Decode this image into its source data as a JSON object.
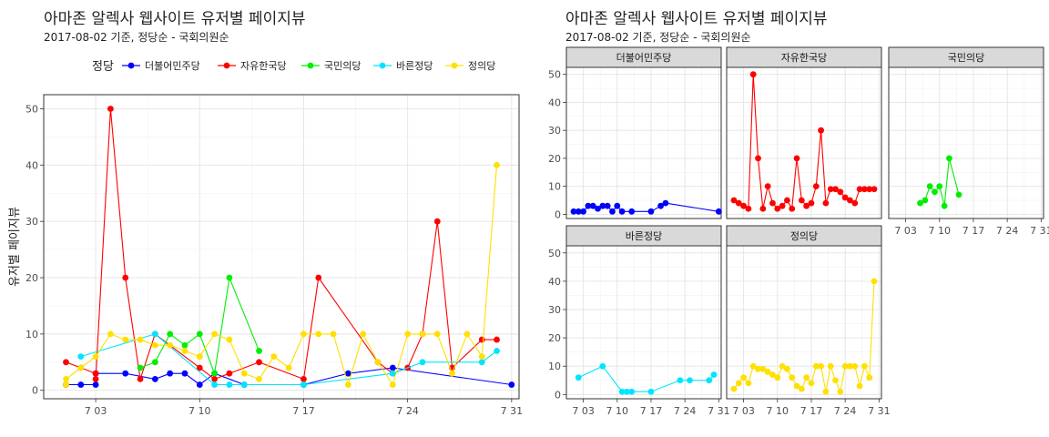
{
  "left": {
    "title": "아마존 알렉사 웹사이트 유저별 페이지뷰",
    "subtitle": "2017-08-02 기준, 정당순 - 국회의원순",
    "legend_title": "정당",
    "ylabel": "유저별 페이지뷰"
  },
  "right": {
    "title": "아마존 알렉사 웹사이트 유저별 페이지뷰",
    "subtitle": "2017-08-02 기준, 정당순 - 국회의원순"
  },
  "colors": {
    "더불어민주당": "#0000ff",
    "자유한국당": "#ff0000",
    "국민의당": "#00ee00",
    "바른정당": "#00e5ff",
    "정의당": "#ffe000"
  },
  "chart_data": [
    {
      "type": "line",
      "title": "아마존 알렉사 웹사이트 유저별 페이지뷰",
      "subtitle": "2017-08-02 기준, 정당순 - 국회의원순",
      "xlabel": "",
      "ylabel": "유저별 페이지뷰",
      "x_ticks": [
        "7 03",
        "7 10",
        "7 17",
        "7 24",
        "7 31"
      ],
      "x_tick_values": [
        3,
        10,
        17,
        24,
        31
      ],
      "xlim": [
        -0.5,
        31.5
      ],
      "ylim": [
        -1.5,
        52.5
      ],
      "y_ticks": [
        0,
        10,
        20,
        30,
        40,
        50
      ],
      "legend_title": "정당",
      "legend_position": "top",
      "grid": true,
      "series": [
        {
          "name": "더불어민주당",
          "x": [
            1,
            2,
            3,
            3,
            5,
            7,
            8,
            9,
            10,
            11,
            13,
            17,
            20,
            23,
            31
          ],
          "y": [
            1,
            1,
            1,
            3,
            3,
            2,
            3,
            3,
            1,
            3,
            1,
            1,
            3,
            4,
            1
          ]
        },
        {
          "name": "자유한국당",
          "x": [
            1,
            2,
            3,
            3,
            4,
            5,
            6,
            7,
            10,
            11,
            12,
            14,
            17,
            18,
            22,
            23,
            24,
            25,
            26,
            27,
            29,
            30
          ],
          "y": [
            5,
            4,
            3,
            2,
            50,
            20,
            2,
            10,
            4,
            2,
            3,
            5,
            2,
            20,
            5,
            3,
            4,
            10,
            30,
            4,
            9,
            9
          ]
        },
        {
          "name": "국민의당",
          "x": [
            6,
            7,
            8,
            9,
            10,
            11,
            12,
            14
          ],
          "y": [
            4,
            5,
            10,
            8,
            10,
            3,
            20,
            7
          ]
        },
        {
          "name": "바른정당",
          "x": [
            2,
            7,
            11,
            12,
            13,
            17,
            23,
            25,
            29,
            30
          ],
          "y": [
            6,
            10,
            1,
            1,
            1,
            1,
            3,
            5,
            5,
            7
          ]
        },
        {
          "name": "정의당",
          "x": [
            1,
            1,
            2,
            3,
            4,
            5,
            6,
            7,
            8,
            9,
            10,
            10,
            11,
            12,
            13,
            14,
            15,
            16,
            17,
            18,
            19,
            20,
            21,
            22,
            23,
            24,
            25,
            26,
            27,
            28,
            29,
            30
          ],
          "y": [
            1,
            2,
            4,
            6,
            10,
            9,
            9,
            8,
            8,
            7,
            6,
            6,
            10,
            9,
            3,
            2,
            6,
            4,
            10,
            10,
            10,
            1,
            10,
            5,
            1,
            10,
            10,
            10,
            3,
            10,
            6,
            40
          ]
        }
      ]
    },
    {
      "type": "line",
      "title": "아마존 알렉사 웹사이트 유저별 페이지뷰",
      "subtitle": "2017-08-02 기준, 정당순 - 국회의원순",
      "facets": [
        "더불어민주당",
        "자유한국당",
        "국민의당",
        "바른정당",
        "정의당"
      ],
      "x_ticks": [
        "7 03",
        "7 10",
        "7 17",
        "7 24",
        "7 31"
      ],
      "x_tick_values": [
        3,
        10,
        17,
        24,
        31
      ],
      "xlim": [
        -0.5,
        31.5
      ],
      "ylim": [
        -1.5,
        52.5
      ],
      "y_ticks": [
        0,
        10,
        20,
        30,
        40,
        50
      ],
      "grid": true,
      "series": [
        {
          "name": "더불어민주당",
          "x": [
            1,
            2,
            3,
            4,
            5,
            6,
            7,
            8,
            9,
            10,
            11,
            13,
            17,
            19,
            20,
            31
          ],
          "y": [
            1,
            1,
            1,
            3,
            3,
            2,
            3,
            3,
            1,
            3,
            1,
            1,
            1,
            3,
            4,
            1
          ]
        },
        {
          "name": "자유한국당",
          "x": [
            1,
            2,
            3,
            4,
            5,
            6,
            7,
            8,
            9,
            10,
            11,
            12,
            13,
            14,
            15,
            16,
            17,
            18,
            19,
            20,
            21,
            22,
            23,
            24,
            25,
            26,
            27,
            28,
            29,
            30
          ],
          "y": [
            5,
            4,
            3,
            2,
            50,
            20,
            2,
            10,
            4,
            2,
            3,
            5,
            2,
            20,
            5,
            3,
            4,
            10,
            30,
            4,
            9,
            9,
            8,
            6,
            5,
            4,
            9,
            9,
            9,
            9
          ]
        },
        {
          "name": "국민의당",
          "x": [
            6,
            7,
            8,
            9,
            10,
            11,
            12,
            14
          ],
          "y": [
            4,
            5,
            10,
            8,
            10,
            3,
            20,
            7
          ]
        },
        {
          "name": "바른정당",
          "x": [
            2,
            7,
            11,
            12,
            13,
            17,
            23,
            25,
            29,
            30
          ],
          "y": [
            6,
            10,
            1,
            1,
            1,
            1,
            5,
            5,
            5,
            7
          ]
        },
        {
          "name": "정의당",
          "x": [
            1,
            2,
            3,
            4,
            5,
            6,
            7,
            8,
            9,
            10,
            11,
            12,
            13,
            14,
            15,
            16,
            17,
            18,
            19,
            20,
            21,
            22,
            23,
            24,
            25,
            26,
            27,
            28,
            29,
            30
          ],
          "y": [
            2,
            4,
            6,
            4,
            10,
            9,
            9,
            8,
            7,
            6,
            10,
            9,
            6,
            3,
            2,
            6,
            4,
            10,
            10,
            1,
            10,
            5,
            1,
            10,
            10,
            10,
            3,
            10,
            6,
            40
          ]
        }
      ]
    }
  ]
}
